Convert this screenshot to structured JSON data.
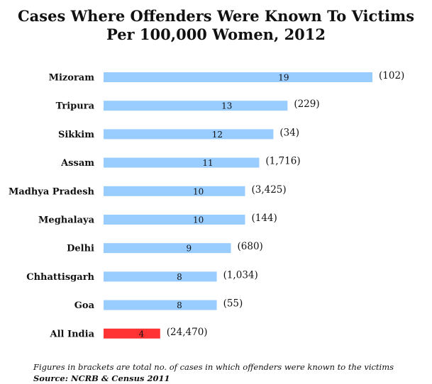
{
  "chart_data": {
    "type": "bar",
    "orientation": "horizontal",
    "title_lines": [
      "Cases Where Offenders Were Known To Victims",
      "Per 100,000 Women, 2012"
    ],
    "categories": [
      "Mizoram",
      "Tripura",
      "Sikkim",
      "Assam",
      "Madhya Pradesh",
      "Meghalaya",
      "Delhi",
      "Chhattisgarh",
      "Goa",
      "All India"
    ],
    "values": [
      19,
      13,
      12,
      11,
      10,
      10,
      9,
      8,
      8,
      4
    ],
    "value_labels": [
      "19",
      "13",
      "12",
      "11",
      "10",
      "10",
      "9",
      "8",
      "8",
      "4"
    ],
    "annotations": [
      "(102)",
      "(229)",
      "(34)",
      "(1,716)",
      "(3,425)",
      "(144)",
      "(680)",
      "(1,034)",
      "(55)",
      "(24,470)"
    ],
    "bar_colors": [
      "#99ccff",
      "#99ccff",
      "#99ccff",
      "#99ccff",
      "#99ccff",
      "#99ccff",
      "#99ccff",
      "#99ccff",
      "#99ccff",
      "#ff3333"
    ],
    "xlim": [
      0,
      19
    ],
    "grid": false,
    "legend": "none",
    "note": "Figures in brackets  are total  no. of cases in which offenders were known to the victims",
    "source": "Source: NCRB & Census 2011"
  }
}
